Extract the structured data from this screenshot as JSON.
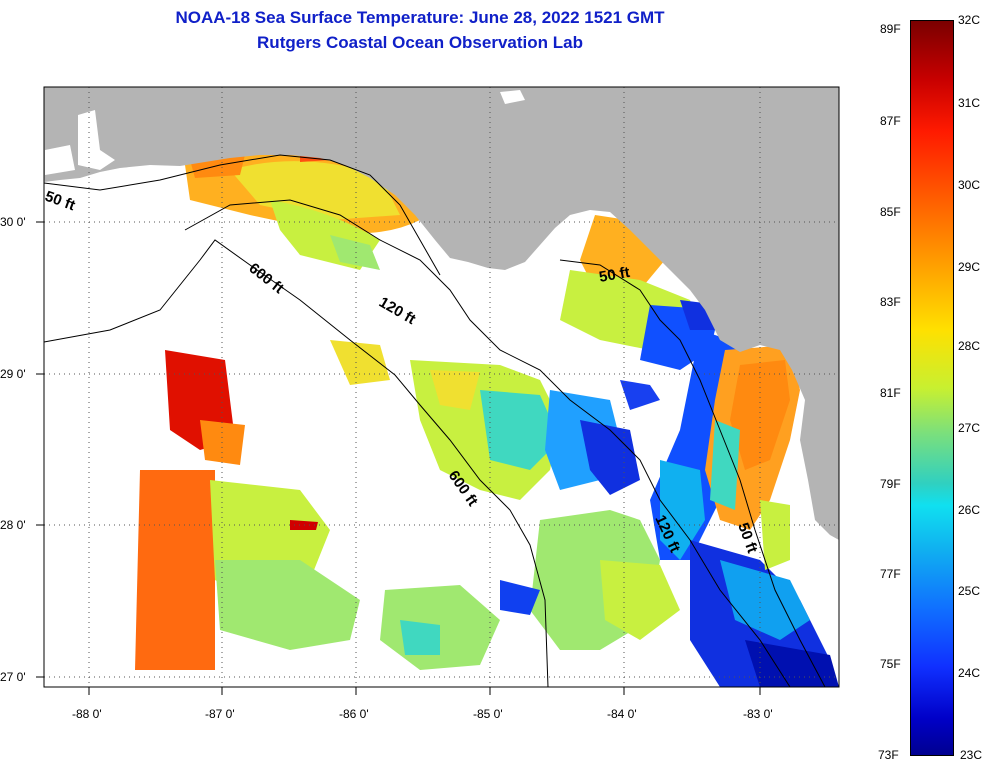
{
  "title_line1": "NOAA-18 Sea Surface Temperature:  June 28, 2022 1521 GMT",
  "title_line2": "Rutgers Coastal Ocean Observation Lab",
  "map": {
    "x_ticks": [
      "-88 0'",
      "-87 0'",
      "-86 0'",
      "-85 0'",
      "-84 0'",
      "-83 0'"
    ],
    "y_ticks": [
      "30 0'",
      "29 0'",
      "28 0'",
      "27 0'"
    ],
    "contour_labels": [
      "50 ft",
      "600 ft",
      "120 ft",
      "50 ft",
      "600 ft",
      "120 ft",
      "50 ft"
    ],
    "colors": {
      "land": "#b4b4b4",
      "ocean_nodata": "#ffffff",
      "contour": "#000000"
    }
  },
  "colorbar": {
    "fahrenheit": [
      "89F",
      "87F",
      "85F",
      "83F",
      "81F",
      "79F",
      "77F",
      "75F",
      "73F"
    ],
    "celsius": [
      "32C",
      "31C",
      "30C",
      "29C",
      "28C",
      "27C",
      "26C",
      "25C",
      "24C",
      "23C"
    ]
  }
}
